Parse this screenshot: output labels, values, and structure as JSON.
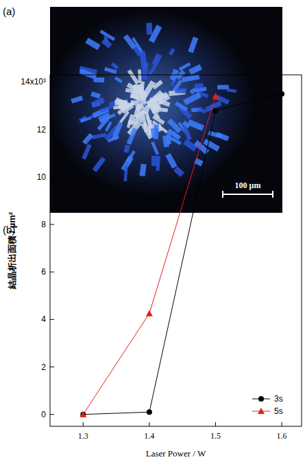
{
  "panel_a": {
    "label": "(a)",
    "scale_bar": "100 μm"
  },
  "chart_data": {
    "type": "line",
    "panel_label": "(b)",
    "x_label": "Laser Power / W",
    "y_label": "結晶析出面積 / µm²",
    "xlim": [
      1.25,
      1.63
    ],
    "xticks": [
      1.3,
      1.4,
      1.5,
      1.6
    ],
    "ylim": [
      -0.5,
      14.3
    ],
    "yticks": [
      0,
      2,
      4,
      6,
      8,
      10,
      12,
      {
        "value": 14,
        "label": "14x10³"
      }
    ],
    "legend": "lower right",
    "grid": false,
    "series": [
      {
        "name": "3s",
        "color": "#000000",
        "marker": "circle",
        "x": [
          1.3,
          1.4,
          1.5,
          1.6
        ],
        "values": [
          0,
          0.1,
          12.8,
          13.5
        ]
      },
      {
        "name": "5s",
        "color": "#e0201b",
        "marker": "triangle",
        "x": [
          1.3,
          1.4,
          1.5
        ],
        "values": [
          0,
          4.25,
          13.4
        ]
      }
    ]
  }
}
